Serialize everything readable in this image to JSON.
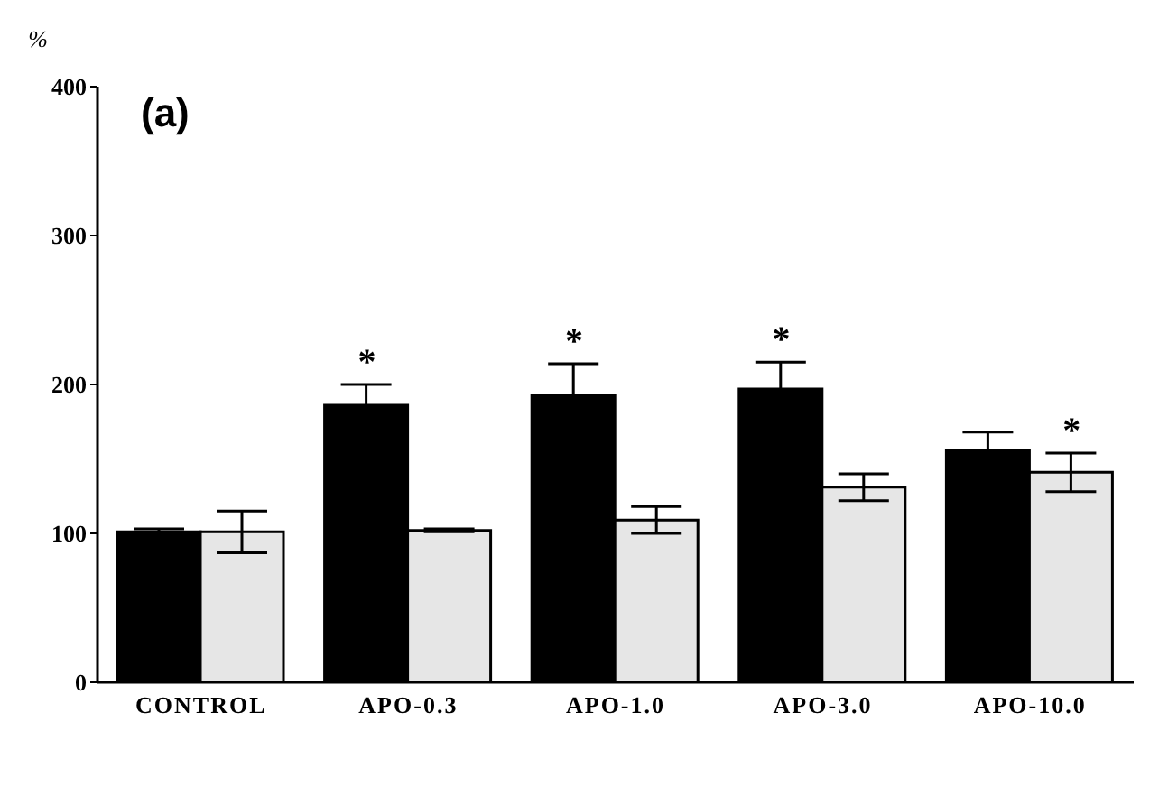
{
  "chart_data": {
    "type": "bar",
    "ylabel": "%",
    "categories": [
      "CONTROL",
      "APO-0.3",
      "APO-1.0",
      "APO-3.0",
      "APO-10.0"
    ],
    "series": [
      {
        "color": "#000000",
        "values": [
          101,
          186,
          193,
          197,
          156
        ],
        "errors": [
          2,
          14,
          21,
          18,
          12
        ]
      },
      {
        "color": "#e6e6e6",
        "values": [
          101,
          102,
          109,
          131,
          141
        ],
        "errors": [
          14,
          1,
          9,
          9,
          13
        ]
      }
    ],
    "ylim": [
      0,
      400
    ],
    "yticks": [
      0,
      100,
      200,
      300,
      400
    ],
    "grid": false,
    "legend": false,
    "annotations": [
      "(a)",
      {
        "text": "*",
        "x": "APO-0.3",
        "y": 186
      },
      {
        "text": "*",
        "x": "APO-1.0",
        "y": 193
      },
      {
        "text": "*",
        "x": "APO-3.0",
        "y": 197
      },
      {
        "text": "*",
        "x": "APO-10.0",
        "y": 154
      }
    ]
  }
}
